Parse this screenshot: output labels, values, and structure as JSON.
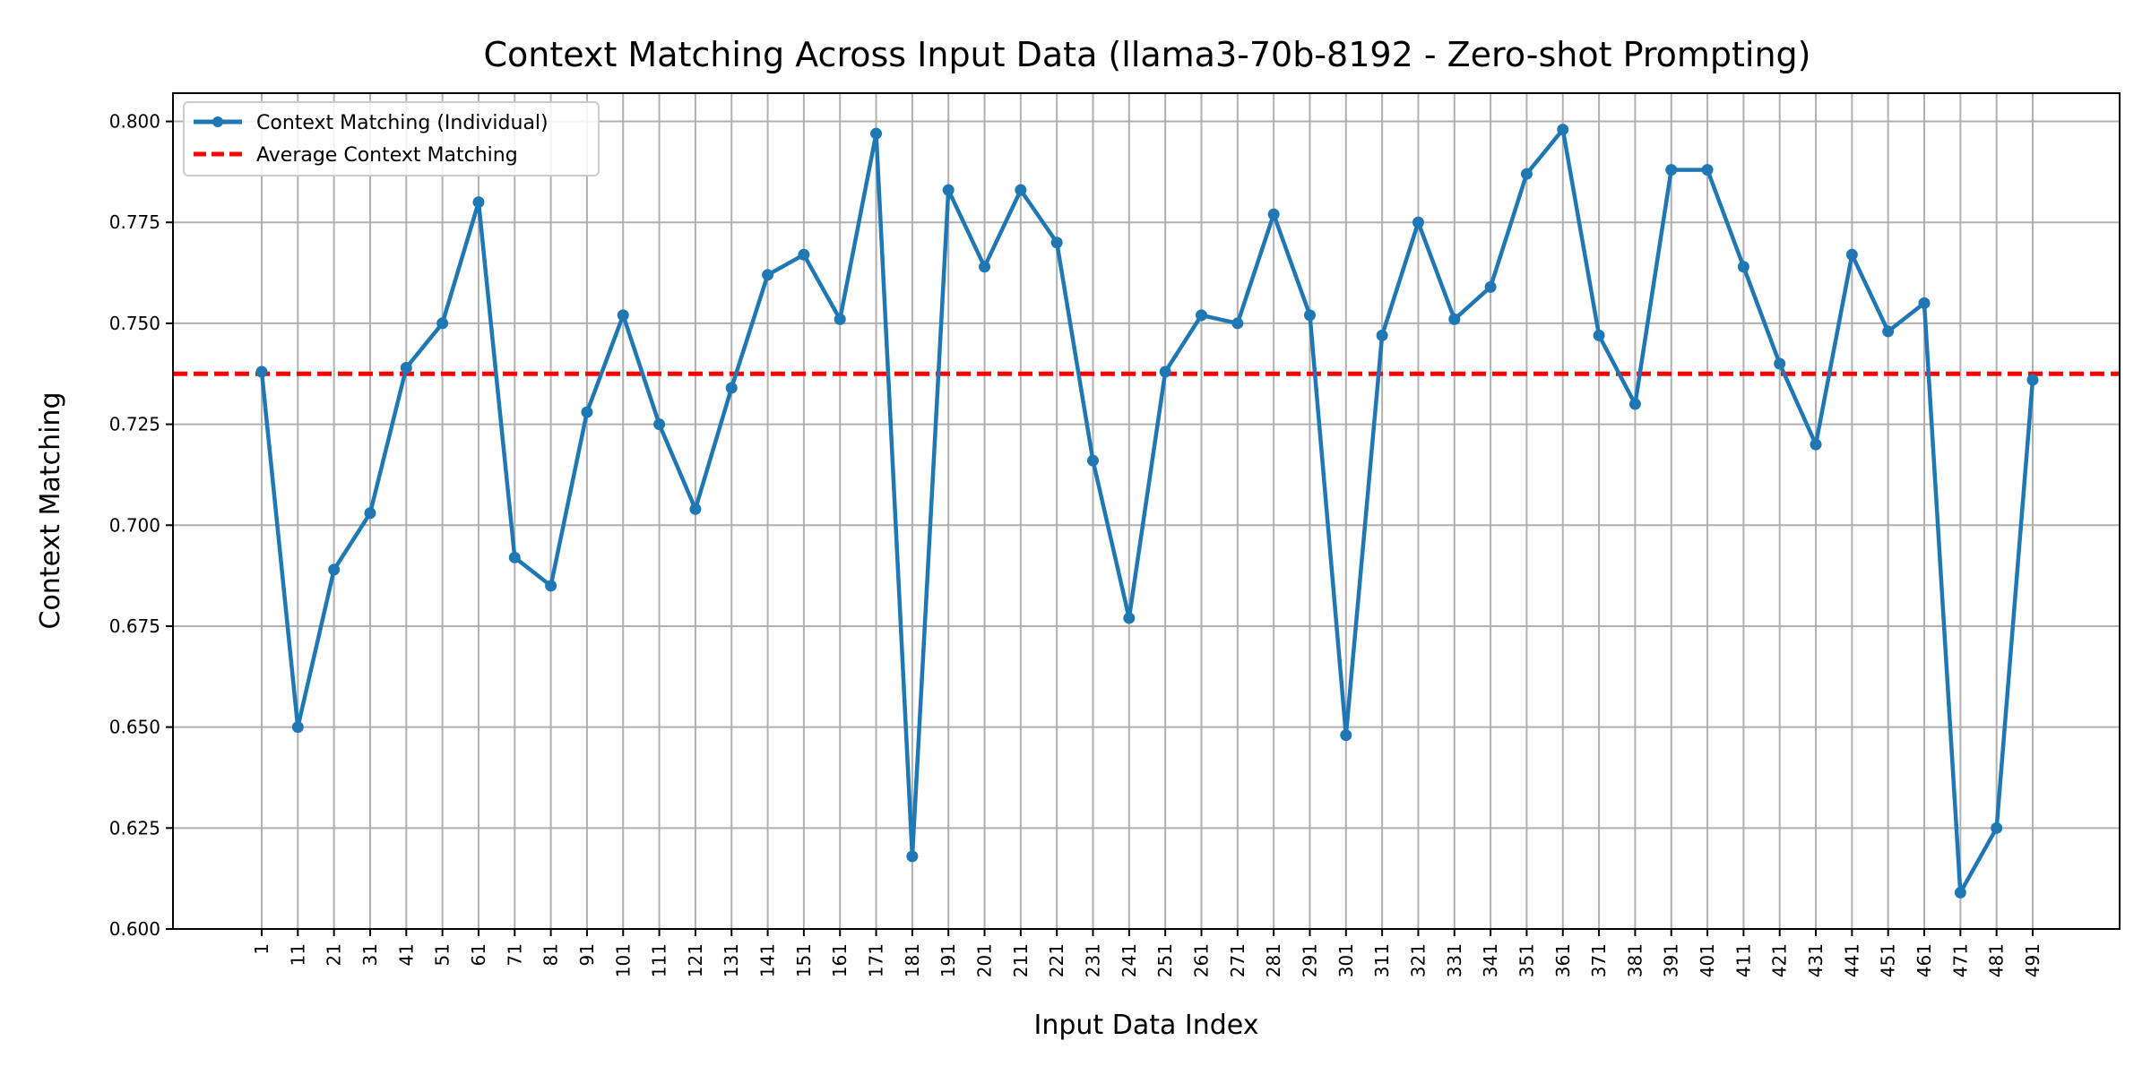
{
  "chart_data": {
    "type": "line",
    "title": "Context Matching Across Input Data (llama3-70b-8192 - Zero-shot Prompting)",
    "xlabel": "Input Data Index",
    "ylabel": "Context Matching",
    "ylim": [
      0.6,
      0.807
    ],
    "yticks": [
      "0.600",
      "0.625",
      "0.650",
      "0.675",
      "0.700",
      "0.725",
      "0.750",
      "0.775",
      "0.800"
    ],
    "grid": true,
    "legend_position": "top-left",
    "x": [
      1,
      11,
      21,
      31,
      41,
      51,
      61,
      71,
      81,
      91,
      101,
      111,
      121,
      131,
      141,
      151,
      161,
      171,
      181,
      191,
      201,
      211,
      221,
      231,
      241,
      251,
      261,
      271,
      281,
      291,
      301,
      311,
      321,
      331,
      341,
      351,
      361,
      371,
      381,
      391,
      401,
      411,
      421,
      431,
      441,
      451,
      461,
      471,
      481,
      491
    ],
    "xtick_labels": [
      "1",
      "11",
      "21",
      "31",
      "41",
      "51",
      "61",
      "71",
      "81",
      "91",
      "101",
      "111",
      "121",
      "131",
      "141",
      "151",
      "161",
      "171",
      "181",
      "191",
      "201",
      "211",
      "221",
      "231",
      "241",
      "251",
      "261",
      "271",
      "281",
      "291",
      "301",
      "311",
      "321",
      "331",
      "341",
      "351",
      "361",
      "371",
      "381",
      "391",
      "401",
      "411",
      "421",
      "431",
      "441",
      "451",
      "461",
      "471",
      "481",
      "491"
    ],
    "series": [
      {
        "name": "Context Matching (Individual)",
        "color": "#1f77b4",
        "style": "solid-markers",
        "values": [
          0.738,
          0.65,
          0.689,
          0.703,
          0.739,
          0.75,
          0.78,
          0.692,
          0.685,
          0.728,
          0.752,
          0.725,
          0.704,
          0.734,
          0.762,
          0.767,
          0.751,
          0.797,
          0.618,
          0.783,
          0.764,
          0.783,
          0.77,
          0.716,
          0.677,
          0.738,
          0.752,
          0.75,
          0.777,
          0.752,
          0.648,
          0.747,
          0.775,
          0.751,
          0.759,
          0.787,
          0.798,
          0.747,
          0.73,
          0.788,
          0.788,
          0.764,
          0.74,
          0.72,
          0.767,
          0.748,
          0.755,
          0.609,
          0.625,
          0.736
        ]
      },
      {
        "name": "Average Context Matching",
        "color": "#ff0000",
        "style": "dashed",
        "value": 0.7375
      }
    ]
  }
}
